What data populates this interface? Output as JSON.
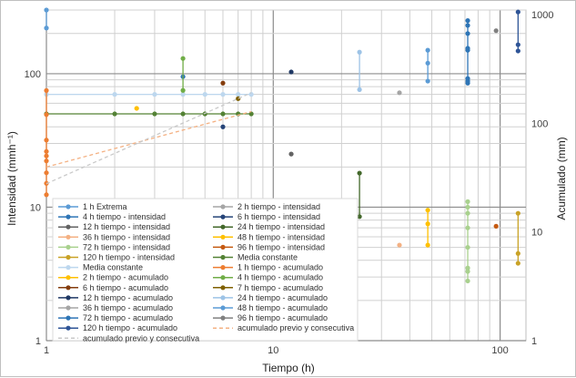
{
  "chart_data": {
    "type": "scatter",
    "xlabel": "Tiempo (h)",
    "ylabel": "Intensidad (mmh⁻¹)",
    "y2label": "Acumulado (mm)",
    "xscale": "log",
    "yscale": "log",
    "y2scale": "log",
    "xlim": [
      1,
      130
    ],
    "ylim": [
      1,
      300
    ],
    "y2lim": [
      1,
      1100
    ],
    "xticks": [
      "1",
      "10",
      "100"
    ],
    "yticks": [
      "1",
      "10",
      "100"
    ],
    "y2ticks": [
      "1",
      "10",
      "100",
      "1000"
    ],
    "legend_position": "lower-left-inset",
    "series": [
      {
        "name": "1 h Extrema",
        "color": "#5b9bd5",
        "axis": "left",
        "line": true,
        "points": [
          [
            1,
            300
          ],
          [
            1,
            220
          ]
        ]
      },
      {
        "name": "2 h tiempo - intensidad",
        "color": "#a5a5a5",
        "axis": "left",
        "line": false,
        "points": []
      },
      {
        "name": "4 h tiempo - intensidad",
        "color": "#2e75b6",
        "axis": "left",
        "line": false,
        "points": [
          [
            4,
            95
          ]
        ]
      },
      {
        "name": "6 h tiempo - intensidad",
        "color": "#264478",
        "axis": "left",
        "line": false,
        "points": [
          [
            6,
            40
          ]
        ]
      },
      {
        "name": "12 h tiempo - intensidad",
        "color": "#636363",
        "axis": "left",
        "line": false,
        "points": [
          [
            12,
            25
          ]
        ]
      },
      {
        "name": "24 h tiempo - intensidad",
        "color": "#43682b",
        "axis": "left",
        "line": true,
        "points": [
          [
            24,
            18
          ],
          [
            24,
            8.5
          ]
        ]
      },
      {
        "name": "36 h tiempo - intensidad",
        "color": "#f4b183",
        "axis": "left",
        "line": false,
        "points": [
          [
            36,
            5.2
          ]
        ]
      },
      {
        "name": "48 h tiempo - intensidad",
        "color": "#ffc000",
        "axis": "left",
        "line": true,
        "points": [
          [
            48,
            9.5
          ],
          [
            48,
            7.5
          ],
          [
            48,
            5.2
          ]
        ]
      },
      {
        "name": "72 h  tiempo - intensidad",
        "color": "#a9d18e",
        "axis": "left",
        "line": true,
        "points": [
          [
            72,
            11
          ],
          [
            72,
            10
          ],
          [
            72,
            9
          ],
          [
            72,
            7
          ],
          [
            72,
            5
          ],
          [
            72,
            3.5
          ],
          [
            72,
            3.3
          ],
          [
            72,
            2.8
          ]
        ]
      },
      {
        "name": "96 h tiempo - intensidad",
        "color": "#c55a11",
        "axis": "left",
        "line": false,
        "points": [
          [
            96,
            7.2
          ]
        ]
      },
      {
        "name": "120 h tiempo - intensidad",
        "color": "#c9a227",
        "axis": "left",
        "line": true,
        "points": [
          [
            120,
            9
          ],
          [
            120,
            4.5
          ],
          [
            120,
            3.8
          ]
        ]
      },
      {
        "name": "Media constante",
        "color": "#548235",
        "axis": "left",
        "line": true,
        "points": [
          [
            1,
            50
          ],
          [
            2,
            50
          ],
          [
            3,
            50
          ],
          [
            4,
            50
          ],
          [
            5,
            50
          ],
          [
            6,
            50
          ],
          [
            7,
            50
          ],
          [
            8,
            50
          ]
        ]
      },
      {
        "name": "Media constante",
        "color": "#bdd7ee",
        "axis": "left",
        "line": true,
        "points": [
          [
            1,
            70
          ],
          [
            2,
            70
          ],
          [
            3,
            70
          ],
          [
            4,
            70
          ],
          [
            5,
            70
          ],
          [
            6,
            70
          ],
          [
            7,
            70
          ],
          [
            8,
            70
          ]
        ]
      },
      {
        "name": "1 h tiempo - acumulado",
        "color": "#ed7d31",
        "axis": "right",
        "line": true,
        "points": [
          [
            1,
            200
          ],
          [
            1,
            120
          ],
          [
            1,
            70
          ],
          [
            1,
            55
          ],
          [
            1,
            50
          ],
          [
            1,
            45
          ],
          [
            1,
            35
          ],
          [
            1,
            28
          ],
          [
            1,
            22
          ]
        ]
      },
      {
        "name": "2 h tiempo - acumulado",
        "color": "#ffc000",
        "axis": "left",
        "line": false,
        "points": [
          [
            2.5,
            55
          ]
        ]
      },
      {
        "name": "4 h tiempo - acumulado",
        "color": "#70ad47",
        "axis": "left",
        "line": true,
        "points": [
          [
            4,
            130
          ],
          [
            4,
            75
          ]
        ]
      },
      {
        "name": "6 h tiempo - acumulado",
        "color": "#843c0c",
        "axis": "left",
        "line": false,
        "points": [
          [
            6,
            85
          ]
        ]
      },
      {
        "name": "7 h tiempo - acumulado",
        "color": "#7f6000",
        "axis": "left",
        "line": false,
        "points": [
          [
            7,
            65
          ]
        ]
      },
      {
        "name": "12 h tiempo - acumulado",
        "color": "#1f3864",
        "axis": "left",
        "line": false,
        "points": [
          [
            12,
            103
          ]
        ]
      },
      {
        "name": "24 h tiempo - acumulado",
        "color": "#9dc3e6",
        "axis": "left",
        "line": true,
        "points": [
          [
            24,
            145
          ],
          [
            24,
            76
          ]
        ]
      },
      {
        "name": "36 h tiempo - acumulado",
        "color": "#a5a5a5",
        "axis": "left",
        "line": false,
        "points": [
          [
            36,
            72
          ]
        ]
      },
      {
        "name": "48 h  tiempo - acumulado",
        "color": "#5b9bd5",
        "axis": "left",
        "line": true,
        "points": [
          [
            48,
            150
          ],
          [
            48,
            120
          ],
          [
            48,
            88
          ]
        ]
      },
      {
        "name": "72 h tiempo - acumulado",
        "color": "#2e75b6",
        "axis": "left",
        "line": true,
        "points": [
          [
            72,
            250
          ],
          [
            72,
            230
          ],
          [
            72,
            200
          ],
          [
            72,
            155
          ],
          [
            72,
            150
          ],
          [
            72,
            92
          ],
          [
            72,
            88
          ],
          [
            72,
            85
          ]
        ]
      },
      {
        "name": "96 h tiempo - acumulado",
        "color": "#808080",
        "axis": "left",
        "line": false,
        "points": [
          [
            96,
            210
          ]
        ]
      },
      {
        "name": "120 h tiempo - acumulado",
        "color": "#2f5597",
        "axis": "left",
        "line": true,
        "points": [
          [
            120,
            290
          ],
          [
            120,
            165
          ],
          [
            120,
            148
          ]
        ]
      },
      {
        "name": "acumulado previo y consecutiva",
        "color": "#f4b183",
        "axis": "left",
        "line": "dashed",
        "points": [
          [
            1,
            20
          ],
          [
            8,
            52
          ]
        ]
      },
      {
        "name": "acumulado previo y consecutiva",
        "color": "#c9c9c9",
        "axis": "left",
        "line": "dashed",
        "points": [
          [
            1,
            15
          ],
          [
            8,
            72
          ]
        ]
      }
    ]
  }
}
